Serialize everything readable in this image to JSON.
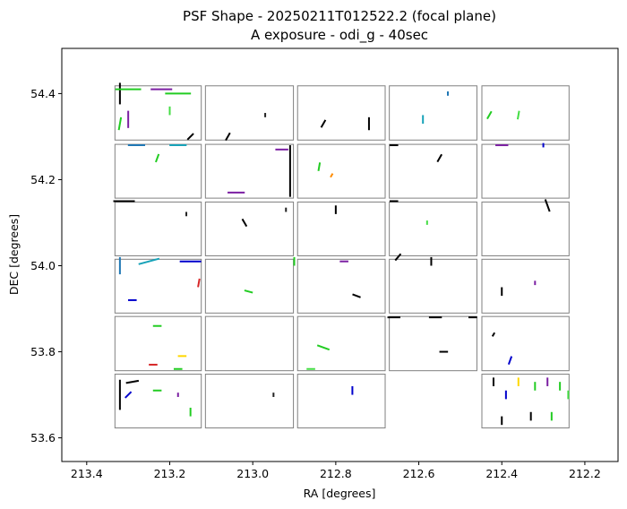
{
  "chart_data": {
    "type": "scatter",
    "title": "PSF Shape - 20250211T012522.2 (focal plane)",
    "subtitle": "A exposure - odi_g - 40sec",
    "xlabel": "RA [degrees]",
    "ylabel": "DEC [degrees]",
    "xlim": [
      213.46,
      212.12
    ],
    "ylim": [
      53.545,
      54.505
    ],
    "x_inverted": true,
    "grid": false,
    "xticks": [
      213.4,
      213.2,
      213.0,
      212.8,
      212.6,
      212.4,
      212.2
    ],
    "xtick_labels": [
      "213.4",
      "213.2",
      "213.0",
      "212.8",
      "212.6",
      "212.4",
      "212.2"
    ],
    "yticks": [
      53.6,
      53.8,
      54.0,
      54.2,
      54.4
    ],
    "ytick_labels": [
      "53.6",
      "53.8",
      "54.0",
      "54.2",
      "54.4"
    ],
    "chip_color": "#808080",
    "ota_grid": {
      "ra_cols": [
        [
          213.332,
          213.124
        ],
        [
          213.114,
          212.902
        ],
        [
          212.892,
          212.681
        ],
        [
          212.671,
          212.46
        ],
        [
          212.448,
          212.238
        ]
      ],
      "dec_rows": [
        [
          54.418,
          54.292
        ],
        [
          54.282,
          54.157
        ],
        [
          54.148,
          54.023
        ],
        [
          54.015,
          53.89
        ],
        [
          53.882,
          53.756
        ],
        [
          53.748,
          53.623
        ]
      ],
      "missing": [
        [
          5,
          3
        ]
      ]
    },
    "whisker_colors": [
      "#000000",
      "#222222",
      "#444444",
      "#22cc22",
      "#44dd44",
      "#1f77b4",
      "#17a2b8",
      "#0000cc",
      "#7b1fa2",
      "#d62728",
      "#ff8c00",
      "#ffd700"
    ],
    "whiskers": [
      {
        "ra": 213.32,
        "dec": 54.4,
        "len": 0.05,
        "angle": 90,
        "color": "#000000"
      },
      {
        "ra": 213.3,
        "dec": 54.41,
        "len": 0.06,
        "angle": 0,
        "color": "#22cc22"
      },
      {
        "ra": 213.22,
        "dec": 54.41,
        "len": 0.05,
        "angle": 0,
        "color": "#7b1fa2"
      },
      {
        "ra": 213.18,
        "dec": 54.4,
        "len": 0.06,
        "angle": 0,
        "color": "#22cc22"
      },
      {
        "ra": 213.3,
        "dec": 54.34,
        "len": 0.04,
        "angle": 90,
        "color": "#7b1fa2"
      },
      {
        "ra": 213.32,
        "dec": 54.33,
        "len": 0.03,
        "angle": 80,
        "color": "#22cc22"
      },
      {
        "ra": 213.2,
        "dec": 54.36,
        "len": 0.02,
        "angle": 90,
        "color": "#44dd44"
      },
      {
        "ra": 213.15,
        "dec": 54.3,
        "len": 0.02,
        "angle": 45,
        "color": "#000000"
      },
      {
        "ra": 213.06,
        "dec": 54.3,
        "len": 0.02,
        "angle": 60,
        "color": "#000000"
      },
      {
        "ra": 212.97,
        "dec": 54.35,
        "len": 0.01,
        "angle": 90,
        "color": "#222222"
      },
      {
        "ra": 212.83,
        "dec": 54.33,
        "len": 0.02,
        "angle": 60,
        "color": "#000000"
      },
      {
        "ra": 212.72,
        "dec": 54.33,
        "len": 0.03,
        "angle": 90,
        "color": "#000000"
      },
      {
        "ra": 212.59,
        "dec": 54.34,
        "len": 0.02,
        "angle": 90,
        "color": "#17a2b8"
      },
      {
        "ra": 212.53,
        "dec": 54.4,
        "len": 0.01,
        "angle": 90,
        "color": "#1f77b4"
      },
      {
        "ra": 212.43,
        "dec": 54.35,
        "len": 0.02,
        "angle": 60,
        "color": "#22cc22"
      },
      {
        "ra": 212.36,
        "dec": 54.35,
        "len": 0.02,
        "angle": 80,
        "color": "#44dd44"
      },
      {
        "ra": 213.28,
        "dec": 54.28,
        "len": 0.04,
        "angle": 0,
        "color": "#1f77b4"
      },
      {
        "ra": 213.18,
        "dec": 54.28,
        "len": 0.04,
        "angle": 0,
        "color": "#17a2b8"
      },
      {
        "ra": 213.23,
        "dec": 54.25,
        "len": 0.02,
        "angle": 70,
        "color": "#22cc22"
      },
      {
        "ra": 212.93,
        "dec": 54.27,
        "len": 0.03,
        "angle": 0,
        "color": "#7b1fa2"
      },
      {
        "ra": 212.91,
        "dec": 54.22,
        "len": 0.12,
        "angle": 90,
        "color": "#000000"
      },
      {
        "ra": 213.04,
        "dec": 54.17,
        "len": 0.04,
        "angle": 0,
        "color": "#7b1fa2"
      },
      {
        "ra": 212.84,
        "dec": 54.23,
        "len": 0.02,
        "angle": 80,
        "color": "#22cc22"
      },
      {
        "ra": 212.81,
        "dec": 54.21,
        "len": 0.01,
        "angle": 60,
        "color": "#ff8c00"
      },
      {
        "ra": 212.66,
        "dec": 54.28,
        "len": 0.02,
        "angle": 0,
        "color": "#000000"
      },
      {
        "ra": 212.55,
        "dec": 54.25,
        "len": 0.02,
        "angle": 60,
        "color": "#000000"
      },
      {
        "ra": 212.4,
        "dec": 54.28,
        "len": 0.03,
        "angle": 0,
        "color": "#7b1fa2"
      },
      {
        "ra": 212.3,
        "dec": 54.28,
        "len": 0.01,
        "angle": 90,
        "color": "#0000cc"
      },
      {
        "ra": 213.31,
        "dec": 54.15,
        "len": 0.05,
        "angle": 0,
        "color": "#000000"
      },
      {
        "ra": 213.16,
        "dec": 54.12,
        "len": 0.01,
        "angle": 90,
        "color": "#222222"
      },
      {
        "ra": 213.02,
        "dec": 54.1,
        "len": 0.02,
        "angle": 120,
        "color": "#000000"
      },
      {
        "ra": 212.92,
        "dec": 54.13,
        "len": 0.01,
        "angle": 90,
        "color": "#222222"
      },
      {
        "ra": 212.8,
        "dec": 54.13,
        "len": 0.02,
        "angle": 90,
        "color": "#000000"
      },
      {
        "ra": 212.66,
        "dec": 54.15,
        "len": 0.02,
        "angle": 0,
        "color": "#000000"
      },
      {
        "ra": 212.58,
        "dec": 54.1,
        "len": 0.01,
        "angle": 90,
        "color": "#44dd44"
      },
      {
        "ra": 212.29,
        "dec": 54.14,
        "len": 0.03,
        "angle": 110,
        "color": "#000000"
      },
      {
        "ra": 213.32,
        "dec": 54.0,
        "len": 0.04,
        "angle": 90,
        "color": "#1f77b4"
      },
      {
        "ra": 213.25,
        "dec": 54.01,
        "len": 0.05,
        "angle": 15,
        "color": "#17a2b8"
      },
      {
        "ra": 213.15,
        "dec": 54.01,
        "len": 0.05,
        "angle": 0,
        "color": "#0000cc"
      },
      {
        "ra": 213.29,
        "dec": 53.92,
        "len": 0.02,
        "angle": 0,
        "color": "#0000cc"
      },
      {
        "ra": 213.13,
        "dec": 53.96,
        "len": 0.02,
        "angle": 80,
        "color": "#d62728"
      },
      {
        "ra": 213.01,
        "dec": 53.94,
        "len": 0.02,
        "angle": 165,
        "color": "#22cc22"
      },
      {
        "ra": 212.9,
        "dec": 54.01,
        "len": 0.02,
        "angle": 90,
        "color": "#22cc22"
      },
      {
        "ra": 212.78,
        "dec": 54.01,
        "len": 0.02,
        "angle": 0,
        "color": "#7b1fa2"
      },
      {
        "ra": 212.75,
        "dec": 53.93,
        "len": 0.02,
        "angle": 160,
        "color": "#000000"
      },
      {
        "ra": 212.65,
        "dec": 54.02,
        "len": 0.02,
        "angle": 50,
        "color": "#000000"
      },
      {
        "ra": 212.57,
        "dec": 54.01,
        "len": 0.02,
        "angle": 90,
        "color": "#000000"
      },
      {
        "ra": 212.4,
        "dec": 53.94,
        "len": 0.02,
        "angle": 90,
        "color": "#000000"
      },
      {
        "ra": 212.32,
        "dec": 53.96,
        "len": 0.01,
        "angle": 90,
        "color": "#7b1fa2"
      },
      {
        "ra": 213.23,
        "dec": 53.86,
        "len": 0.02,
        "angle": 0,
        "color": "#22cc22"
      },
      {
        "ra": 213.24,
        "dec": 53.77,
        "len": 0.02,
        "angle": 0,
        "color": "#d62728"
      },
      {
        "ra": 213.17,
        "dec": 53.79,
        "len": 0.02,
        "angle": 0,
        "color": "#ffd700"
      },
      {
        "ra": 213.18,
        "dec": 53.76,
        "len": 0.02,
        "angle": 0,
        "color": "#22cc22"
      },
      {
        "ra": 212.83,
        "dec": 53.81,
        "len": 0.03,
        "angle": 160,
        "color": "#22cc22"
      },
      {
        "ra": 212.86,
        "dec": 53.76,
        "len": 0.02,
        "angle": 0,
        "color": "#44dd44"
      },
      {
        "ra": 212.66,
        "dec": 53.88,
        "len": 0.03,
        "angle": 0,
        "color": "#000000"
      },
      {
        "ra": 212.56,
        "dec": 53.88,
        "len": 0.03,
        "angle": 0,
        "color": "#000000"
      },
      {
        "ra": 212.47,
        "dec": 53.88,
        "len": 0.02,
        "angle": 0,
        "color": "#000000"
      },
      {
        "ra": 212.54,
        "dec": 53.8,
        "len": 0.02,
        "angle": 0,
        "color": "#000000"
      },
      {
        "ra": 212.38,
        "dec": 53.78,
        "len": 0.02,
        "angle": 70,
        "color": "#0000cc"
      },
      {
        "ra": 212.42,
        "dec": 53.84,
        "len": 0.01,
        "angle": 60,
        "color": "#000000"
      },
      {
        "ra": 213.32,
        "dec": 53.7,
        "len": 0.07,
        "angle": 90,
        "color": "#000000"
      },
      {
        "ra": 213.29,
        "dec": 53.73,
        "len": 0.03,
        "angle": 10,
        "color": "#000000"
      },
      {
        "ra": 213.23,
        "dec": 53.71,
        "len": 0.02,
        "angle": 0,
        "color": "#22cc22"
      },
      {
        "ra": 213.3,
        "dec": 53.7,
        "len": 0.02,
        "angle": 45,
        "color": "#0000cc"
      },
      {
        "ra": 213.15,
        "dec": 53.66,
        "len": 0.02,
        "angle": 90,
        "color": "#22cc22"
      },
      {
        "ra": 213.18,
        "dec": 53.7,
        "len": 0.01,
        "angle": 90,
        "color": "#7b1fa2"
      },
      {
        "ra": 212.95,
        "dec": 53.7,
        "len": 0.01,
        "angle": 90,
        "color": "#222222"
      },
      {
        "ra": 212.76,
        "dec": 53.71,
        "len": 0.02,
        "angle": 90,
        "color": "#0000cc"
      },
      {
        "ra": 212.42,
        "dec": 53.73,
        "len": 0.02,
        "angle": 90,
        "color": "#000000"
      },
      {
        "ra": 212.39,
        "dec": 53.7,
        "len": 0.02,
        "angle": 90,
        "color": "#0000cc"
      },
      {
        "ra": 212.36,
        "dec": 53.73,
        "len": 0.02,
        "angle": 90,
        "color": "#ffd700"
      },
      {
        "ra": 212.32,
        "dec": 53.72,
        "len": 0.02,
        "angle": 90,
        "color": "#22cc22"
      },
      {
        "ra": 212.29,
        "dec": 53.73,
        "len": 0.02,
        "angle": 90,
        "color": "#7b1fa2"
      },
      {
        "ra": 212.26,
        "dec": 53.72,
        "len": 0.02,
        "angle": 90,
        "color": "#22cc22"
      },
      {
        "ra": 212.24,
        "dec": 53.7,
        "len": 0.02,
        "angle": 90,
        "color": "#44dd44"
      },
      {
        "ra": 212.33,
        "dec": 53.65,
        "len": 0.02,
        "angle": 90,
        "color": "#000000"
      },
      {
        "ra": 212.28,
        "dec": 53.65,
        "len": 0.02,
        "angle": 90,
        "color": "#22cc22"
      },
      {
        "ra": 212.4,
        "dec": 53.64,
        "len": 0.02,
        "angle": 90,
        "color": "#000000"
      }
    ]
  }
}
